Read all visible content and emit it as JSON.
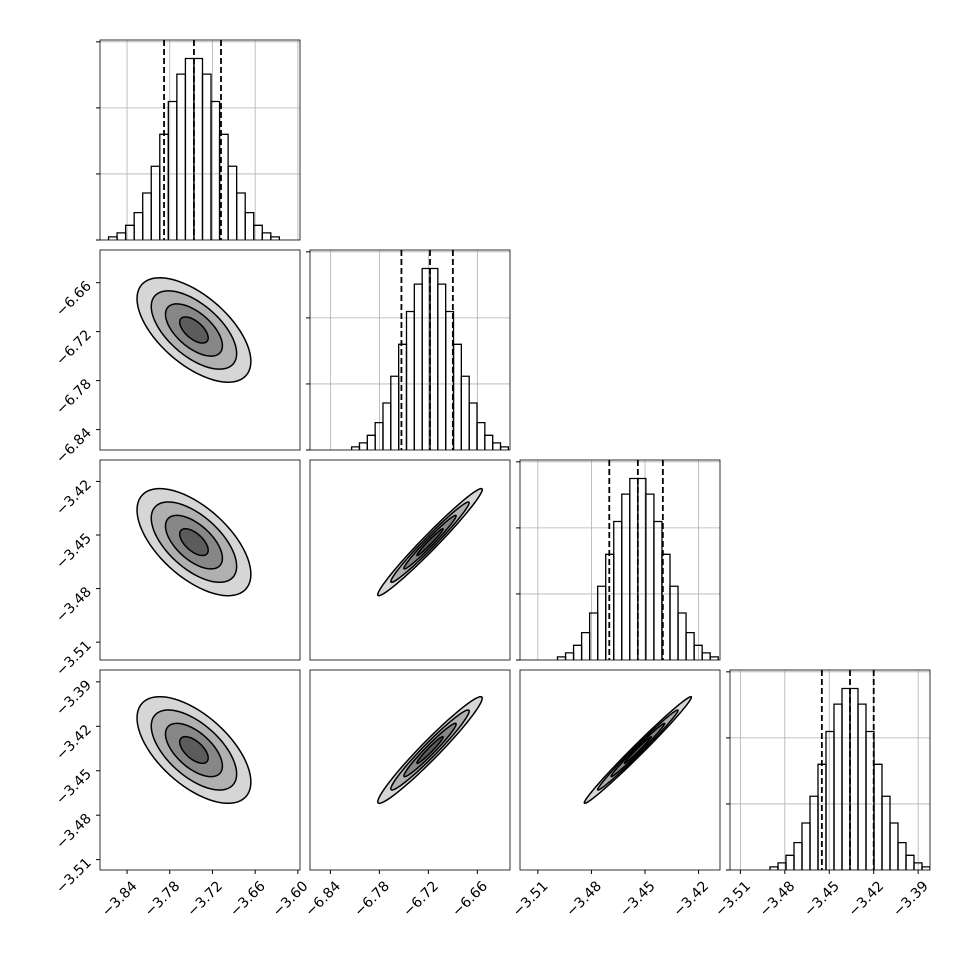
{
  "chart_data": {
    "type": "corner",
    "grid": true,
    "levels": [
      0.5,
      1,
      1.5,
      2
    ],
    "hist_ylim": [
      0,
      1090
    ],
    "hist_yticks": [
      0,
      360,
      720,
      1080
    ],
    "params": [
      {
        "lim": [
          -3.878,
          -3.597
        ],
        "mean": -3.746,
        "sd": 0.04,
        "ticks": [
          {
            "value": -3.84,
            "label": "−3.84"
          },
          {
            "value": -3.78,
            "label": "−3.78"
          },
          {
            "value": -3.72,
            "label": "−3.72"
          },
          {
            "value": -3.66,
            "label": "−3.66"
          },
          {
            "value": -3.6,
            "label": "−3.60"
          }
        ],
        "quantiles": [
          -3.788,
          -3.746,
          -3.708
        ],
        "bins": [
          -3.866,
          -3.854,
          -3.842,
          -3.83,
          -3.818,
          -3.806,
          -3.794,
          -3.782,
          -3.77,
          -3.758,
          -3.746,
          -3.734,
          -3.722,
          -3.71,
          -3.698,
          -3.686,
          -3.674,
          -3.662,
          -3.65,
          -3.638,
          -3.626
        ],
        "counts": [
          17,
          39,
          80,
          149,
          256,
          402,
          576,
          755,
          904,
          989,
          989,
          904,
          755,
          576,
          402,
          256,
          149,
          80,
          39,
          17
        ]
      },
      {
        "lim": [
          -6.865,
          -6.62
        ],
        "mean": -6.718,
        "sd": 0.032,
        "ticks": [
          {
            "value": -6.84,
            "label": "−6.84"
          },
          {
            "value": -6.78,
            "label": "−6.78"
          },
          {
            "value": -6.72,
            "label": "−6.72"
          },
          {
            "value": -6.66,
            "label": "−6.66"
          }
        ],
        "quantiles": [
          -6.753,
          -6.718,
          -6.69
        ],
        "bins": [
          -6.814,
          -6.8044,
          -6.7948,
          -6.7852,
          -6.7756,
          -6.766,
          -6.7564,
          -6.7468,
          -6.7372,
          -6.7276,
          -6.718,
          -6.7084,
          -6.6988,
          -6.6892,
          -6.6796,
          -6.67,
          -6.6604,
          -6.6508,
          -6.6412,
          -6.6316,
          -6.622
        ],
        "counts": [
          17,
          39,
          80,
          149,
          256,
          402,
          576,
          755,
          904,
          989,
          989,
          904,
          755,
          576,
          402,
          256,
          149,
          80,
          39,
          17
        ]
      },
      {
        "lim": [
          -3.52,
          -3.408
        ],
        "mean": -3.454,
        "sd": 0.015,
        "ticks": [
          {
            "value": -3.51,
            "label": "−3.51"
          },
          {
            "value": -3.48,
            "label": "−3.48"
          },
          {
            "value": -3.45,
            "label": "−3.45"
          },
          {
            "value": -3.42,
            "label": "−3.42"
          }
        ],
        "quantiles": [
          -3.47,
          -3.454,
          -3.44
        ],
        "bins": [
          -3.499,
          -3.4945,
          -3.49,
          -3.4855,
          -3.481,
          -3.4765,
          -3.472,
          -3.4675,
          -3.463,
          -3.4585,
          -3.454,
          -3.4495,
          -3.445,
          -3.4405,
          -3.436,
          -3.4315,
          -3.427,
          -3.4225,
          -3.418,
          -3.4135,
          -3.409
        ],
        "counts": [
          17,
          39,
          80,
          149,
          256,
          402,
          576,
          755,
          904,
          989,
          989,
          904,
          755,
          576,
          402,
          256,
          149,
          80,
          39,
          17
        ]
      },
      {
        "lim": [
          -3.517,
          -3.382
        ],
        "mean": -3.436,
        "sd": 0.018,
        "ticks": [
          {
            "value": -3.51,
            "label": "−3.51"
          },
          {
            "value": -3.48,
            "label": "−3.48"
          },
          {
            "value": -3.45,
            "label": "−3.45"
          },
          {
            "value": -3.42,
            "label": "−3.42"
          },
          {
            "value": -3.39,
            "label": "−3.39"
          }
        ],
        "quantiles": [
          -3.455,
          -3.436,
          -3.42
        ],
        "bins": [
          -3.49,
          -3.4846,
          -3.4792,
          -3.4738,
          -3.4684,
          -3.463,
          -3.4576,
          -3.4522,
          -3.4468,
          -3.4414,
          -3.436,
          -3.4306,
          -3.4252,
          -3.4198,
          -3.4144,
          -3.409,
          -3.4036,
          -3.3982,
          -3.3928,
          -3.3874,
          -3.382
        ],
        "counts": [
          17,
          39,
          80,
          149,
          256,
          402,
          576,
          755,
          904,
          989,
          989,
          904,
          755,
          576,
          402,
          256,
          149,
          80,
          39,
          17
        ]
      }
    ],
    "pairs": [
      {
        "x": 0,
        "y": 1,
        "corr": -0.6
      },
      {
        "x": 0,
        "y": 2,
        "corr": -0.6
      },
      {
        "x": 0,
        "y": 3,
        "corr": -0.6
      },
      {
        "x": 1,
        "y": 2,
        "corr": 0.98
      },
      {
        "x": 1,
        "y": 3,
        "corr": 0.97
      },
      {
        "x": 2,
        "y": 3,
        "corr": 0.99
      }
    ]
  }
}
